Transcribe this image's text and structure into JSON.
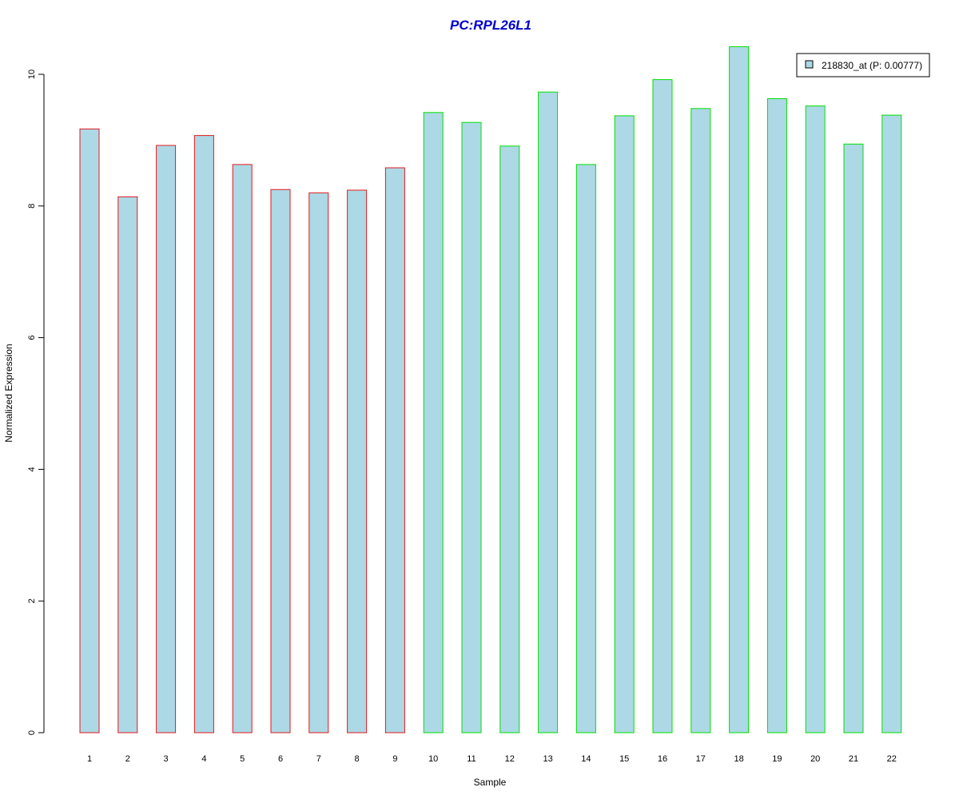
{
  "chart_data": {
    "type": "bar",
    "title": "PC:RPL26L1",
    "xlabel": "Sample",
    "ylabel": "Normalized Expression",
    "categories": [
      "1",
      "2",
      "3",
      "4",
      "5",
      "6",
      "7",
      "8",
      "9",
      "10",
      "11",
      "12",
      "13",
      "14",
      "15",
      "16",
      "17",
      "18",
      "19",
      "20",
      "21",
      "22"
    ],
    "series": [
      {
        "name": "218830_at (P: 0.00777)",
        "values": [
          9.17,
          8.14,
          8.92,
          9.07,
          8.63,
          8.25,
          8.2,
          8.24,
          8.58,
          9.42,
          9.27,
          8.91,
          9.73,
          8.63,
          9.37,
          9.92,
          9.48,
          10.42,
          9.63,
          9.52,
          8.94,
          9.38
        ]
      }
    ],
    "group_border_colors": [
      "#e31a1c",
      "#e31a1c",
      "#e31a1c",
      "#e31a1c",
      "#e31a1c",
      "#e31a1c",
      "#e31a1c",
      "#e31a1c",
      "#e31a1c",
      "#00e000",
      "#00e000",
      "#00e000",
      "#00e000",
      "#00e000",
      "#00e000",
      "#00e000",
      "#00e000",
      "#00e000",
      "#00e000",
      "#00e000",
      "#00e000",
      "#00e000"
    ],
    "bar_fill": "#add8e6",
    "title_color": "#0000cd",
    "ylim": [
      0,
      10.5
    ],
    "yticks": [
      0,
      2,
      4,
      6,
      8,
      10
    ],
    "grid": false,
    "legend_position": "top-right"
  }
}
